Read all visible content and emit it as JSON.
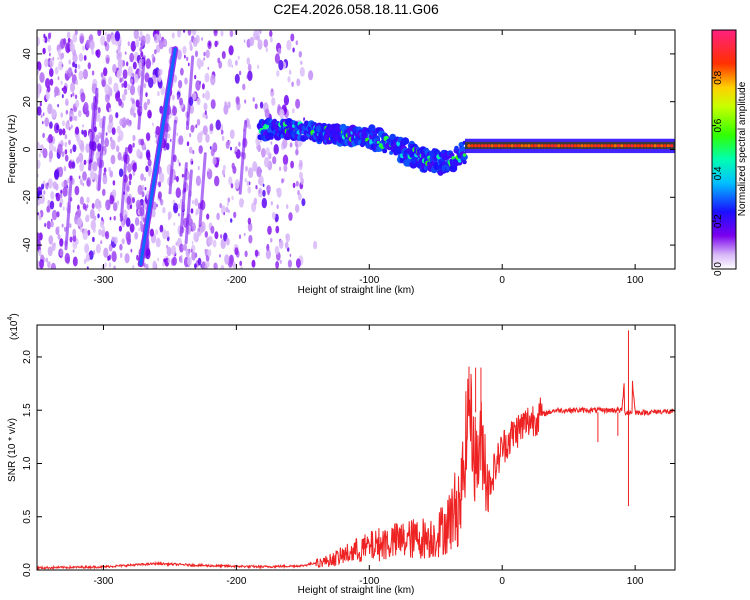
{
  "title": "C2E4.2026.058.18.11.G06",
  "chart_data": [
    {
      "type": "heatmap",
      "name": "spectrogram",
      "xlabel": "Height of straight line (km)",
      "ylabel": "Frequency (Hz)",
      "xlim": [
        -350,
        130
      ],
      "ylim": [
        -50,
        50
      ],
      "xticks": [
        -300,
        -200,
        -100,
        0,
        100
      ],
      "yticks": [
        -40,
        -20,
        0,
        20,
        40
      ],
      "colorbar": {
        "label": "Normalized spectral amplitude",
        "range": [
          0,
          1
        ],
        "ticks": [
          0.0,
          0.2,
          0.4,
          0.6,
          0.8
        ]
      },
      "features": {
        "sloped_line": {
          "x_start": -272,
          "y_start": -48,
          "x_end": -246,
          "y_end": 42,
          "amplitude": 0.3
        },
        "doppler_trace": [
          [
            -182,
            8
          ],
          [
            -160,
            9
          ],
          [
            -140,
            7
          ],
          [
            -120,
            6
          ],
          [
            -100,
            5
          ],
          [
            -80,
            1
          ],
          [
            -60,
            -4
          ],
          [
            -40,
            -6
          ],
          [
            -30,
            -2
          ],
          [
            -25,
            2
          ],
          [
            -10,
            2
          ],
          [
            20,
            1.5
          ],
          [
            60,
            1.5
          ],
          [
            100,
            1.5
          ],
          [
            130,
            2
          ]
        ]
      }
    },
    {
      "type": "line",
      "name": "snr",
      "xlabel": "Height of straight line (km)",
      "ylabel": "SNR (10 * v/v)",
      "scale_label": "(x10",
      "scale_exp": "4",
      "color": "#ee2222",
      "xlim": [
        -350,
        130
      ],
      "ylim": [
        0,
        2.3
      ],
      "xticks": [
        -300,
        -200,
        -100,
        0,
        100
      ],
      "yticks": [
        "0.0",
        "0.5",
        "1.0",
        "1.5",
        "2.0"
      ],
      "series": [
        {
          "name": "SNR",
          "x": [
            -350,
            -300,
            -260,
            -220,
            -180,
            -150,
            -130,
            -110,
            -90,
            -70,
            -50,
            -40,
            -30,
            -25,
            -20,
            -15,
            -10,
            0,
            10,
            20,
            30,
            40,
            60,
            80,
            90,
            95,
            100,
            110,
            120,
            130
          ],
          "values": [
            0.02,
            0.03,
            0.06,
            0.04,
            0.03,
            0.04,
            0.1,
            0.2,
            0.28,
            0.32,
            0.35,
            0.5,
            0.8,
            1.6,
            1.0,
            1.2,
            0.8,
            1.15,
            1.3,
            1.4,
            1.46,
            1.5,
            1.5,
            1.5,
            1.5,
            2.2,
            1.48,
            1.48,
            1.49,
            1.48
          ]
        }
      ],
      "peaks": [
        [
          -25,
          1.91
        ],
        [
          -20,
          1.9
        ],
        [
          -16,
          1.9
        ],
        [
          95,
          2.25
        ],
        [
          95,
          0.6
        ],
        [
          72,
          1.2
        ],
        [
          87,
          1.26
        ]
      ]
    }
  ]
}
